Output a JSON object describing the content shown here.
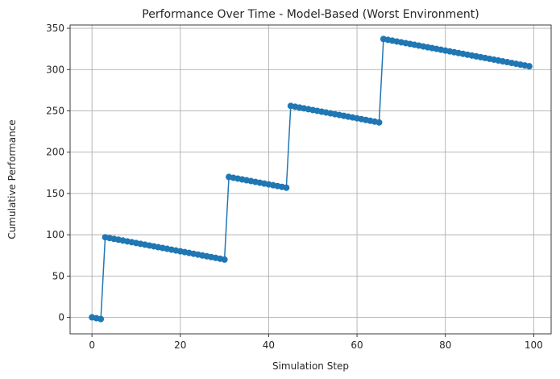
{
  "chart_data": {
    "type": "line",
    "title": "Performance Over Time - Model-Based (Worst Environment)",
    "xlabel": "Simulation Step",
    "ylabel": "Cumulative Performance",
    "xlim": [
      -4.95,
      103.95
    ],
    "ylim": [
      -19.95,
      353.95
    ],
    "xticks": [
      0,
      20,
      40,
      60,
      80,
      100
    ],
    "yticks": [
      0,
      50,
      100,
      150,
      200,
      250,
      300,
      350
    ],
    "grid": true,
    "legend": "none",
    "series": [
      {
        "color": "#1f77b4",
        "marker": "circle",
        "x": [
          0,
          1,
          2,
          3,
          4,
          5,
          6,
          7,
          8,
          9,
          10,
          11,
          12,
          13,
          14,
          15,
          16,
          17,
          18,
          19,
          20,
          21,
          22,
          23,
          24,
          25,
          26,
          27,
          28,
          29,
          30,
          31,
          32,
          33,
          34,
          35,
          36,
          37,
          38,
          39,
          40,
          41,
          42,
          43,
          44,
          45,
          46,
          47,
          48,
          49,
          50,
          51,
          52,
          53,
          54,
          55,
          56,
          57,
          58,
          59,
          60,
          61,
          62,
          63,
          64,
          65,
          66,
          67,
          68,
          69,
          70,
          71,
          72,
          73,
          74,
          75,
          76,
          77,
          78,
          79,
          80,
          81,
          82,
          83,
          84,
          85,
          86,
          87,
          88,
          89,
          90,
          91,
          92,
          93,
          94,
          95,
          96,
          97,
          98,
          99
        ],
        "y": [
          0,
          -1,
          -2,
          97,
          96,
          95,
          94,
          93,
          92,
          91,
          90,
          89,
          88,
          87,
          86,
          85,
          84,
          83,
          82,
          81,
          80,
          79,
          78,
          77,
          76,
          75,
          74,
          73,
          72,
          71,
          70,
          170,
          169,
          168,
          167,
          166,
          165,
          164,
          163,
          162,
          161,
          160,
          159,
          158,
          157,
          256,
          255,
          254,
          253,
          252,
          251,
          250,
          249,
          248,
          247,
          246,
          245,
          244,
          243,
          242,
          241,
          240,
          239,
          238,
          237,
          236,
          337,
          336,
          335,
          334,
          333,
          332,
          331,
          330,
          329,
          328,
          327,
          326,
          325,
          324,
          323,
          322,
          321,
          320,
          319,
          318,
          317,
          316,
          315,
          314,
          313,
          312,
          311,
          310,
          309,
          308,
          307,
          306,
          305,
          304
        ]
      }
    ]
  }
}
